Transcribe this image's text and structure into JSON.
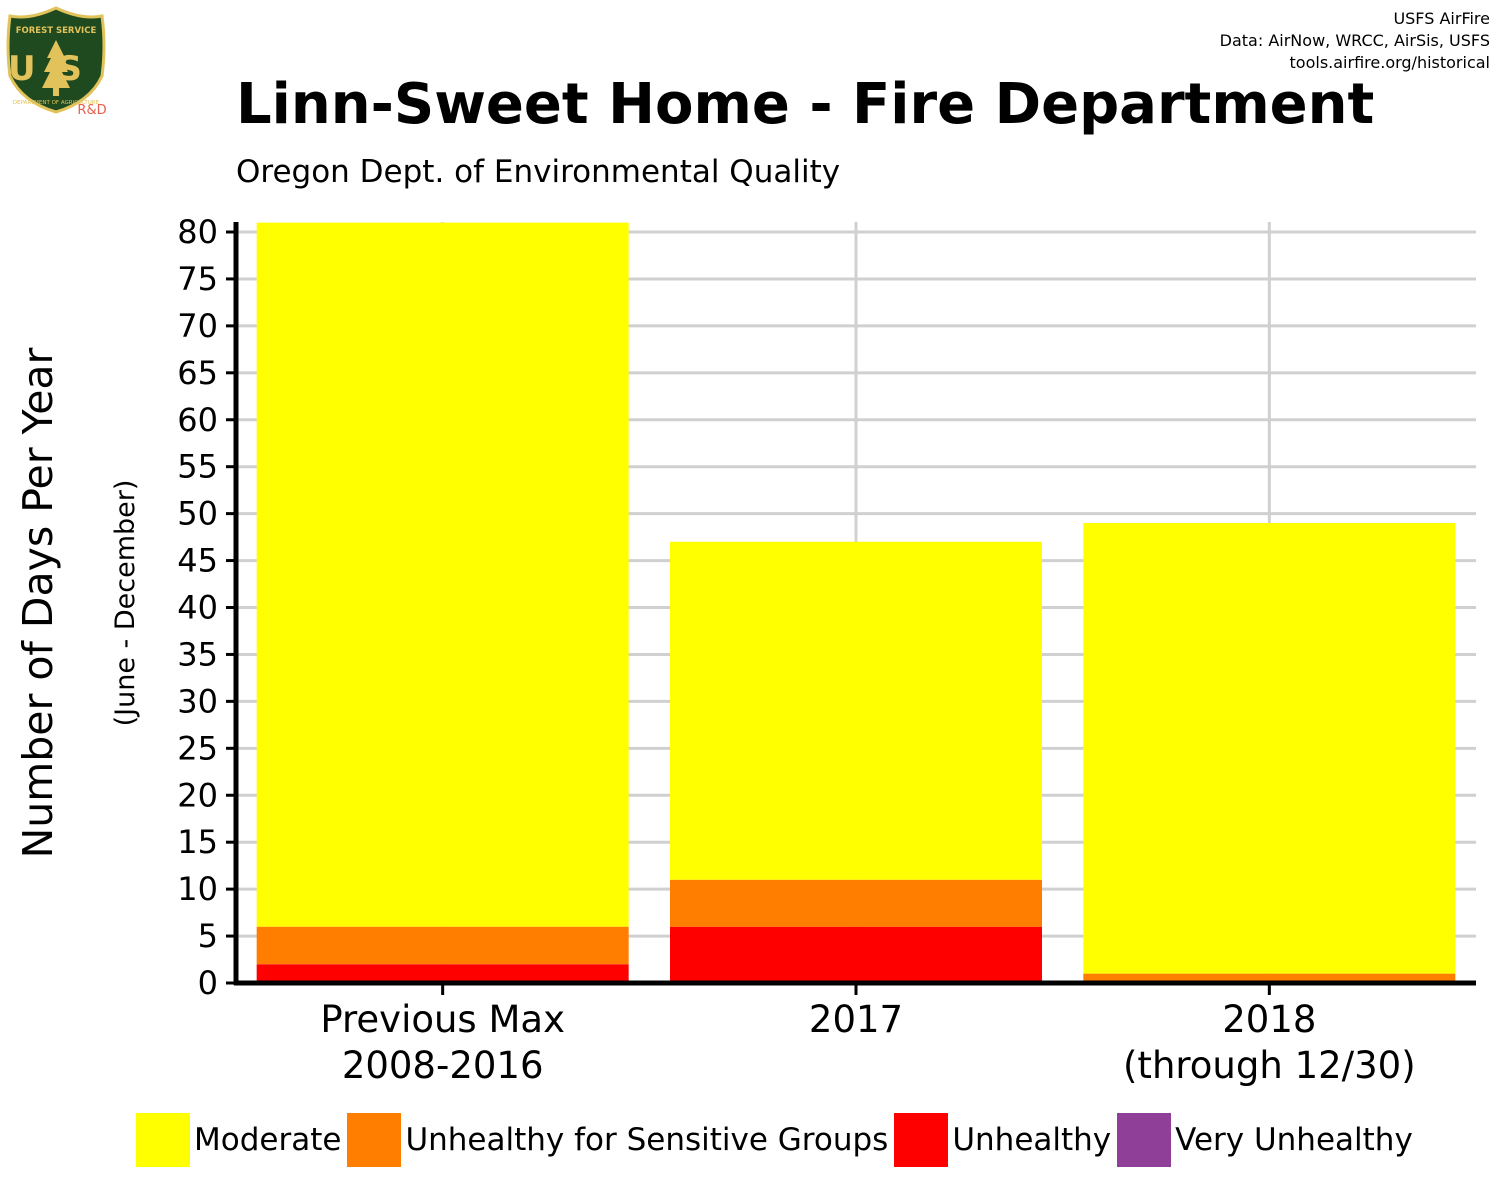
{
  "header": {
    "credits": [
      "USFS AirFire",
      "Data: AirNow, WRCC, AirSis, USFS",
      "tools.airfire.org/historical"
    ],
    "title": "Linn-Sweet Home - Fire Department",
    "subtitle": "Oregon Dept. of Environmental Quality",
    "logo": {
      "icon": "forest-service-shield-icon",
      "text_top": "FOREST SERVICE",
      "letters": "US",
      "text_bottom": "DEPARTMENT OF AGRICULTURE",
      "badge": "R&D"
    }
  },
  "chart_data": {
    "type": "bar",
    "stacked": true,
    "categories": [
      [
        "Previous Max",
        "2008-2016"
      ],
      [
        "2017"
      ],
      [
        "2018",
        "(through 12/30)"
      ]
    ],
    "series": [
      {
        "name": "Unhealthy",
        "color": "#ff0000",
        "values": [
          2,
          6,
          0
        ]
      },
      {
        "name": "Unhealthy for Sensitive Groups",
        "color": "#ff7e00",
        "values": [
          4,
          5,
          1
        ]
      },
      {
        "name": "Moderate",
        "color": "#ffff00",
        "values": [
          75,
          36,
          48
        ]
      },
      {
        "name": "Very Unhealthy",
        "color": "#8f3f97",
        "values": [
          0,
          0,
          0
        ]
      }
    ],
    "legend_order": [
      "Moderate",
      "Unhealthy for Sensitive Groups",
      "Unhealthy",
      "Very Unhealthy"
    ],
    "ylabel": "Number of Days Per Year",
    "ylabel_sub": "(June - December)",
    "ylim": [
      0,
      80
    ],
    "yticks": [
      0,
      5,
      10,
      15,
      20,
      25,
      30,
      35,
      40,
      45,
      50,
      55,
      60,
      65,
      70,
      75,
      80
    ],
    "grid": true,
    "legend_position": "bottom"
  }
}
